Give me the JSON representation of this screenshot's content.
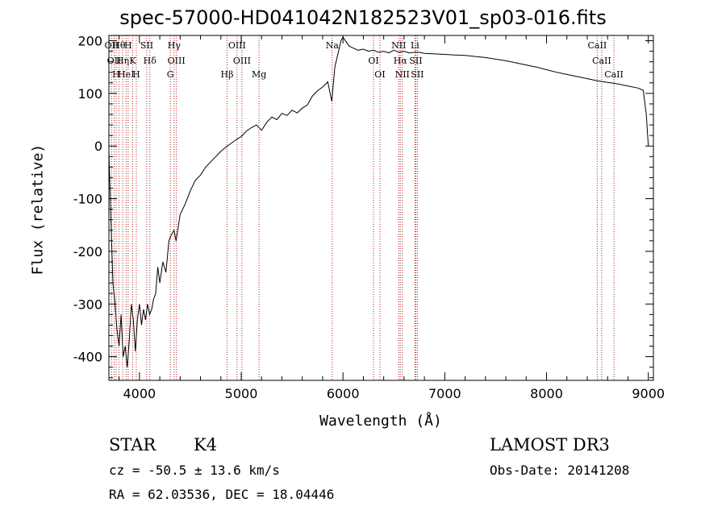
{
  "header": {
    "title": "spec-57000-HD041042N182523V01_sp03-016.fits"
  },
  "info": {
    "object_class": "STAR",
    "subclass": "K4",
    "survey": "LAMOST DR3",
    "redshift": "cz = -50.5 ± 13.6 km/s",
    "obs_date": "Obs-Date: 20141208",
    "coords": "RA =  62.03536, DEC =  18.04446"
  },
  "colors": {
    "line_marker": "#b22222",
    "spectrum": "#000000"
  },
  "chart_data": {
    "type": "line",
    "title": "spec-57000-HD041042N182523V01_sp03-016.fits",
    "xlabel": "Wavelength (Å)",
    "ylabel": "Flux (relative)",
    "xlim": [
      3700,
      9050
    ],
    "ylim": [
      -445,
      210
    ],
    "xticks": [
      4000,
      5000,
      6000,
      7000,
      8000,
      9000
    ],
    "yticks": [
      -400,
      -300,
      -200,
      -100,
      0,
      100,
      200
    ],
    "grid": false,
    "series": [
      {
        "values": [
          [
            3700,
            -10
          ],
          [
            3720,
            -140
          ],
          [
            3740,
            -260
          ],
          [
            3760,
            -300
          ],
          [
            3780,
            -350
          ],
          [
            3800,
            -380
          ],
          [
            3820,
            -320
          ],
          [
            3840,
            -400
          ],
          [
            3860,
            -380
          ],
          [
            3880,
            -420
          ],
          [
            3900,
            -370
          ],
          [
            3920,
            -300
          ],
          [
            3940,
            -330
          ],
          [
            3960,
            -390
          ],
          [
            3980,
            -330
          ],
          [
            4000,
            -300
          ],
          [
            4020,
            -340
          ],
          [
            4040,
            -310
          ],
          [
            4060,
            -330
          ],
          [
            4080,
            -300
          ],
          [
            4100,
            -320
          ],
          [
            4120,
            -310
          ],
          [
            4140,
            -290
          ],
          [
            4160,
            -280
          ],
          [
            4180,
            -230
          ],
          [
            4200,
            -260
          ],
          [
            4230,
            -220
          ],
          [
            4260,
            -240
          ],
          [
            4290,
            -180
          ],
          [
            4310,
            -170
          ],
          [
            4340,
            -160
          ],
          [
            4360,
            -180
          ],
          [
            4400,
            -130
          ],
          [
            4450,
            -110
          ],
          [
            4500,
            -85
          ],
          [
            4550,
            -65
          ],
          [
            4600,
            -55
          ],
          [
            4650,
            -40
          ],
          [
            4700,
            -30
          ],
          [
            4750,
            -20
          ],
          [
            4800,
            -10
          ],
          [
            4850,
            -2
          ],
          [
            4900,
            5
          ],
          [
            4950,
            12
          ],
          [
            5000,
            18
          ],
          [
            5050,
            28
          ],
          [
            5100,
            35
          ],
          [
            5150,
            40
          ],
          [
            5200,
            30
          ],
          [
            5250,
            45
          ],
          [
            5300,
            55
          ],
          [
            5350,
            50
          ],
          [
            5400,
            62
          ],
          [
            5450,
            58
          ],
          [
            5500,
            68
          ],
          [
            5550,
            63
          ],
          [
            5600,
            72
          ],
          [
            5650,
            78
          ],
          [
            5700,
            95
          ],
          [
            5750,
            105
          ],
          [
            5800,
            112
          ],
          [
            5850,
            122
          ],
          [
            5890,
            85
          ],
          [
            5920,
            150
          ],
          [
            5950,
            175
          ],
          [
            5980,
            200
          ],
          [
            6000,
            207
          ],
          [
            6030,
            198
          ],
          [
            6060,
            190
          ],
          [
            6100,
            186
          ],
          [
            6150,
            182
          ],
          [
            6200,
            184
          ],
          [
            6250,
            180
          ],
          [
            6300,
            182
          ],
          [
            6350,
            178
          ],
          [
            6400,
            180
          ],
          [
            6450,
            177
          ],
          [
            6500,
            182
          ],
          [
            6550,
            178
          ],
          [
            6600,
            180
          ],
          [
            6650,
            177
          ],
          [
            6700,
            178
          ],
          [
            6750,
            178
          ],
          [
            6800,
            176
          ],
          [
            6900,
            175
          ],
          [
            7000,
            174
          ],
          [
            7100,
            173
          ],
          [
            7200,
            172
          ],
          [
            7300,
            170
          ],
          [
            7400,
            168
          ],
          [
            7500,
            165
          ],
          [
            7600,
            162
          ],
          [
            7700,
            158
          ],
          [
            7800,
            154
          ],
          [
            7900,
            150
          ],
          [
            8000,
            145
          ],
          [
            8100,
            140
          ],
          [
            8200,
            136
          ],
          [
            8300,
            132
          ],
          [
            8400,
            128
          ],
          [
            8500,
            124
          ],
          [
            8600,
            121
          ],
          [
            8700,
            118
          ],
          [
            8800,
            114
          ],
          [
            8900,
            110
          ],
          [
            8950,
            106
          ],
          [
            8980,
            60
          ],
          [
            9000,
            0
          ]
        ]
      }
    ],
    "annotations": [
      {
        "wave": 3727,
        "label": "OII"
      },
      {
        "wave": 3751,
        "label": "OII"
      },
      {
        "wave": 3771,
        "label": "H"
      },
      {
        "wave": 3798,
        "label": "Hθ"
      },
      {
        "wave": 3835,
        "label": "Hη"
      },
      {
        "wave": 3869,
        "label": "HeI"
      },
      {
        "wave": 3889,
        "label": "H"
      },
      {
        "wave": 3934,
        "label": "K"
      },
      {
        "wave": 3969,
        "label": "H"
      },
      {
        "wave": 4072,
        "label": "SII"
      },
      {
        "wave": 4102,
        "label": "Hδ"
      },
      {
        "wave": 4304,
        "label": "G"
      },
      {
        "wave": 4341,
        "label": "Hγ"
      },
      {
        "wave": 4363,
        "label": "OIII"
      },
      {
        "wave": 4861,
        "label": "Hβ"
      },
      {
        "wave": 4959,
        "label": "OIII"
      },
      {
        "wave": 5007,
        "label": "OIII"
      },
      {
        "wave": 5175,
        "label": "Mg"
      },
      {
        "wave": 5894,
        "label": "Na"
      },
      {
        "wave": 6300,
        "label": "OI"
      },
      {
        "wave": 6363,
        "label": "OI"
      },
      {
        "wave": 6548,
        "label": "NII"
      },
      {
        "wave": 6563,
        "label": "Hα"
      },
      {
        "wave": 6583,
        "label": "NII"
      },
      {
        "wave": 6707,
        "label": "Li"
      },
      {
        "wave": 6716,
        "label": "SII"
      },
      {
        "wave": 6731,
        "label": "SII"
      },
      {
        "wave": 8498,
        "label": "CaII"
      },
      {
        "wave": 8542,
        "label": "CaII"
      },
      {
        "wave": 8662,
        "label": "CaII"
      }
    ]
  }
}
